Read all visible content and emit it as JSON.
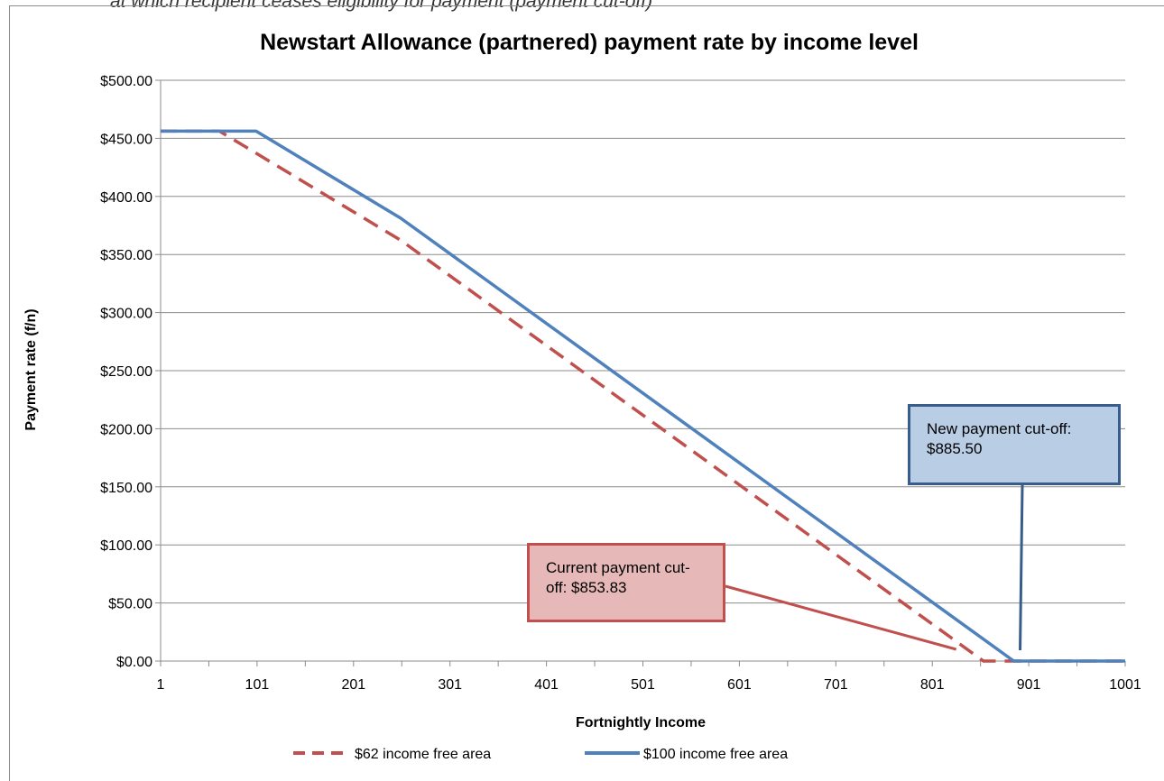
{
  "caption": "at which recipient ceases eligibility for payment (payment cut-off)",
  "chart_data": {
    "type": "line",
    "title": "Newstart Allowance (partnered) payment rate by income level",
    "xlabel": "Fortnightly Income",
    "ylabel": "Payment rate (f/n)",
    "xlim": [
      1,
      1001
    ],
    "ylim": [
      0,
      500
    ],
    "x_tick_labels": [
      "1",
      "101",
      "201",
      "301",
      "401",
      "501",
      "601",
      "701",
      "801",
      "901",
      "1001"
    ],
    "y_tick_labels": [
      "$0.00",
      "$50.00",
      "$100.00",
      "$150.00",
      "$200.00",
      "$250.00",
      "$300.00",
      "$350.00",
      "$400.00",
      "$450.00",
      "$500.00"
    ],
    "grid": true,
    "legend_position": "bottom",
    "series": [
      {
        "name": "$62 income free area",
        "color": "#c0504d",
        "style": "dashed",
        "x": [
          1,
          62,
          250,
          854,
          1001
        ],
        "y": [
          456.2,
          456.2,
          362.2,
          0,
          0
        ]
      },
      {
        "name": "$100 income free area",
        "color": "#4f81bd",
        "style": "solid",
        "x": [
          1,
          100,
          250,
          885.5,
          1001
        ],
        "y": [
          456.2,
          456.2,
          381.2,
          0,
          0
        ]
      }
    ],
    "annotations": [
      {
        "text": "Current payment cut-off: $853.83",
        "x": 853.83,
        "y": 0,
        "color": "#c0504d"
      },
      {
        "text": "New payment cut-off: $885.50",
        "x": 885.5,
        "y": 0,
        "color": "#385d8a"
      }
    ]
  }
}
